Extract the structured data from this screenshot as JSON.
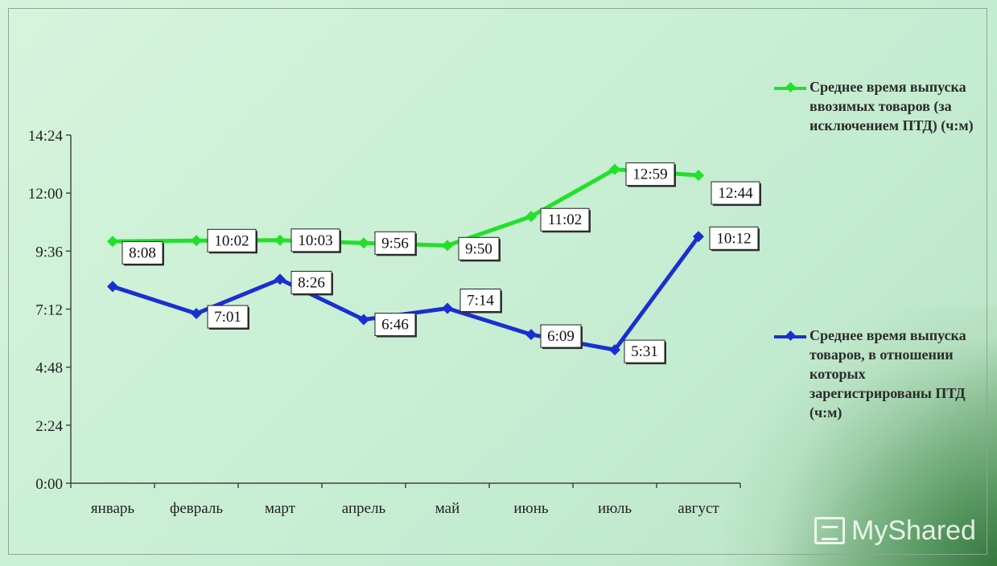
{
  "chart_data": {
    "type": "line",
    "categories": [
      "январь",
      "февраль",
      "март",
      "апрель",
      "май",
      "июнь",
      "июль",
      "август"
    ],
    "y_ticks": [
      "0:00",
      "2:24",
      "4:48",
      "7:12",
      "9:36",
      "12:00",
      "14:24"
    ],
    "ylim": [
      "0:00",
      "14:24"
    ],
    "grid": false,
    "legend_position": "right",
    "series": [
      {
        "name": "Среднее время выпуска ввозимых товаров (за исключением ПТД) (ч:м)",
        "color": "#22e02a",
        "values": [
          "10:00",
          "10:02",
          "10:03",
          "9:56",
          "9:50",
          "11:02",
          "12:59",
          "12:44"
        ],
        "labels": [
          "",
          "10:02",
          "10:03",
          "9:56",
          "9:50",
          "11:02",
          "12:59",
          "12:44"
        ]
      },
      {
        "name": "Среднее время выпуска товаров, в отношении которых зарегистрированы ПТД (ч:м)",
        "color": "#1a2fd1",
        "values": [
          "8:08",
          "7:01",
          "8:26",
          "6:46",
          "7:14",
          "6:09",
          "5:31",
          "10:12"
        ],
        "labels": [
          "8:08",
          "7:01",
          "8:26",
          "6:46",
          "7:14",
          "6:09",
          "5:31",
          "10:12"
        ]
      }
    ]
  },
  "legend": {
    "green": "Среднее время выпуска ввозимых товаров (за исключением ПТД) (ч:м)",
    "blue": "Среднее время выпуска товаров, в отношении которых зарегистрированы ПТД (ч:м)"
  },
  "watermark": {
    "text": "MyShared"
  }
}
